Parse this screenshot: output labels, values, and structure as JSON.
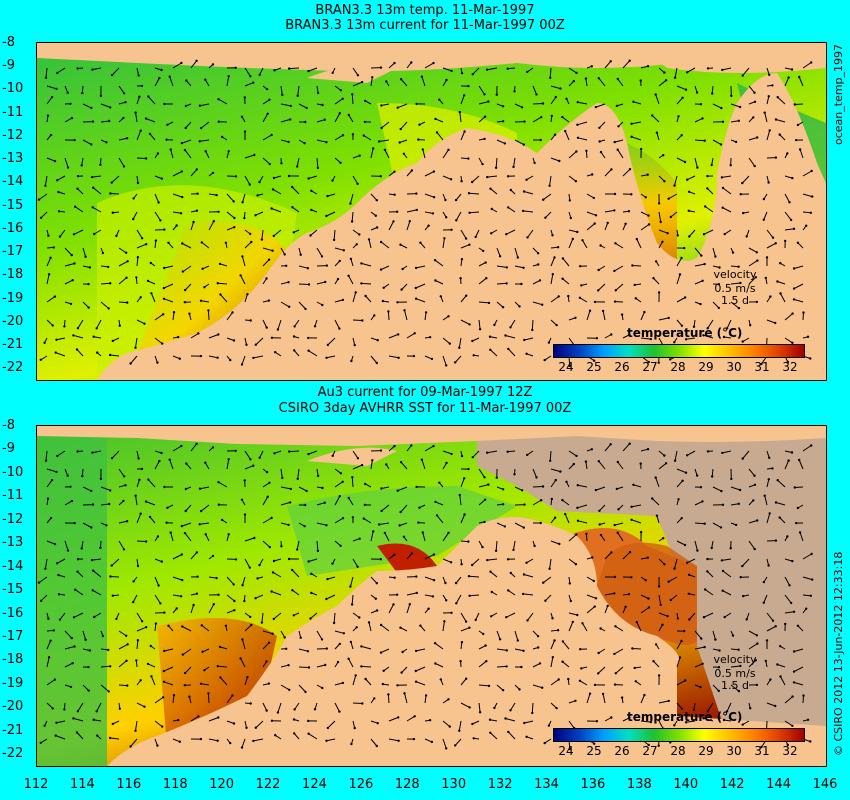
{
  "top_panel": {
    "title_line1": "BRAN3.3 13m temp. 11-Mar-1997",
    "title_line2": "BRAN3.3 13m current for 11-Mar-1997 00Z",
    "velocity_label": "velocity",
    "velocity_value": "0.5 m/s",
    "velocity_time": "1.5 d",
    "colorbar_title": "temperature (°C)",
    "side_label": "ocean_temp_1997"
  },
  "bottom_panel": {
    "title_line1": "Au3 current for 09-Mar-1997 12Z",
    "title_line2": "CSIRO 3day AVHRR SST for 11-Mar-1997 00Z",
    "velocity_label": "velocity",
    "velocity_value": "0.5 m/s",
    "velocity_time": "1.5 d",
    "colorbar_title": "temperature (°C)",
    "side_label": "© CSIRO 2012  13-Jun-2012 12:33:18"
  },
  "axes": {
    "lat_ticks": [
      "-8",
      "-9",
      "-10",
      "-11",
      "-12",
      "-13",
      "-14",
      "-15",
      "-16",
      "-17",
      "-18",
      "-19",
      "-20",
      "-21",
      "-22"
    ],
    "lon_ticks": [
      "112",
      "114",
      "116",
      "118",
      "120",
      "122",
      "124",
      "126",
      "128",
      "130",
      "132",
      "134",
      "136",
      "138",
      "140",
      "142",
      "144",
      "146"
    ],
    "lon_range": [
      112,
      146
    ],
    "lat_range": [
      -22.5,
      -8
    ]
  },
  "colorbar_ticks": [
    "24",
    "25",
    "26",
    "27",
    "28",
    "29",
    "30",
    "31",
    "32"
  ],
  "colors": {
    "background": "#00ffff",
    "land": "#f7c38f",
    "no_data": "#c8aa90"
  }
}
